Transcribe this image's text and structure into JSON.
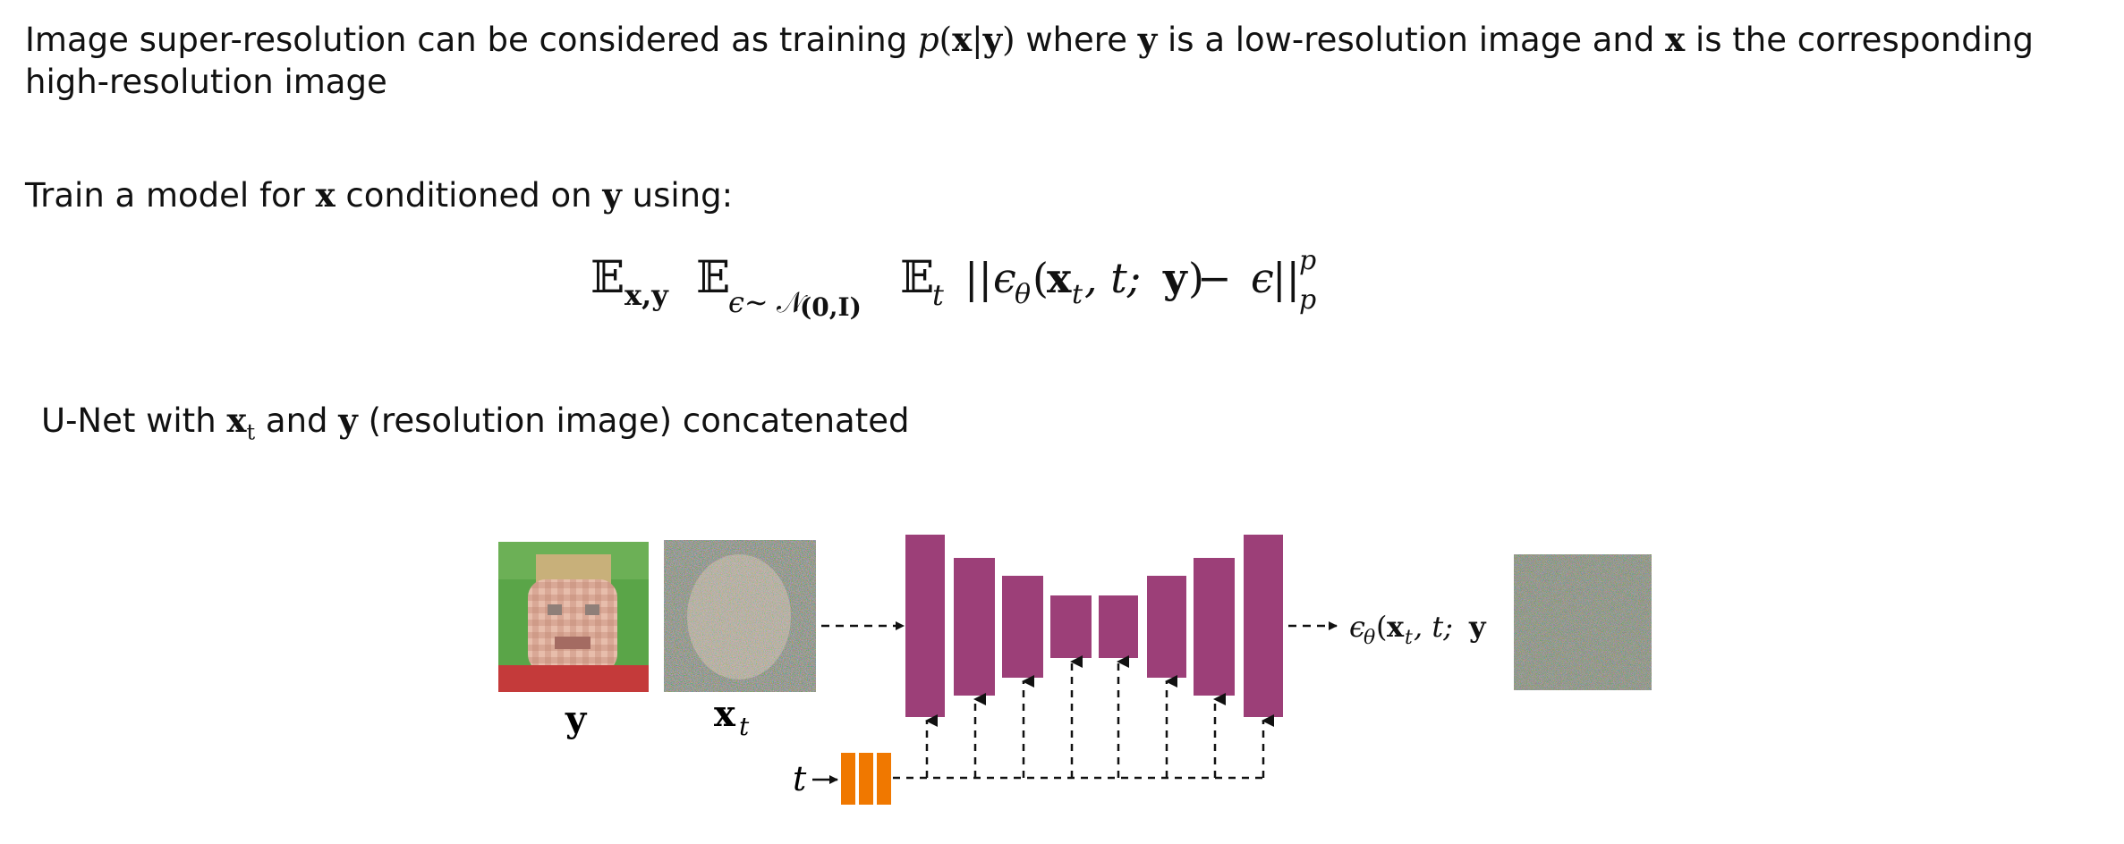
{
  "intro": {
    "part1": "Image super-resolution can be considered as training",
    "p": "p",
    "paren_open": "(",
    "x": "x",
    "bar": "|",
    "y": "y",
    "paren_close": ")",
    "part2": "where",
    "y2": "y",
    "part3": "is a low-resolution image and",
    "x2": "x",
    "part4": "is the corresponding",
    "line2": "high-resolution image"
  },
  "train": {
    "part1": "Train a model for",
    "x": "x",
    "part2": "conditioned on",
    "y": "y",
    "part3": "using:"
  },
  "equation": {
    "E": "𝔼",
    "sub1": "x,y",
    "sub2_eps": "ϵ∼",
    "sub2_N": "𝒩",
    "sub2_args": "(0,I)",
    "sub3": "t",
    "norm_open": "||",
    "eps": "ϵ",
    "theta": "θ",
    "args_open": "(",
    "xt_x": "x",
    "xt_t": "t",
    "args_mid": ", t; ",
    "args_y": "y",
    "args_close": ")",
    "minus": " − ",
    "eps2": "ϵ",
    "norm_close": "||",
    "power": "p",
    "subp": "p"
  },
  "unet_caption": {
    "part1": "U-Net with",
    "xt_x": "x",
    "xt_t": "t",
    "part2": "and",
    "y": "y",
    "part3": "(resolution image) concatenated"
  },
  "diagram": {
    "label_y": "y",
    "label_xt_x": "x",
    "label_xt_t": "t",
    "label_t": "t",
    "output_eps": "ϵ",
    "output_theta": "θ",
    "output_args_open": "(",
    "output_x": "x",
    "output_t": "t",
    "output_mid": ", t; ",
    "output_y": "y",
    "output_close": ")",
    "colors": {
      "unet": "#9c3f78",
      "timestep": "#f07800",
      "face_bg": "#5aa548",
      "face_shirt": "#c43a3a",
      "face_skin": "#e6bba8",
      "noise_gray": "#8a8a82"
    },
    "unet_block_count": 8,
    "time_embedding_cells": 3
  }
}
